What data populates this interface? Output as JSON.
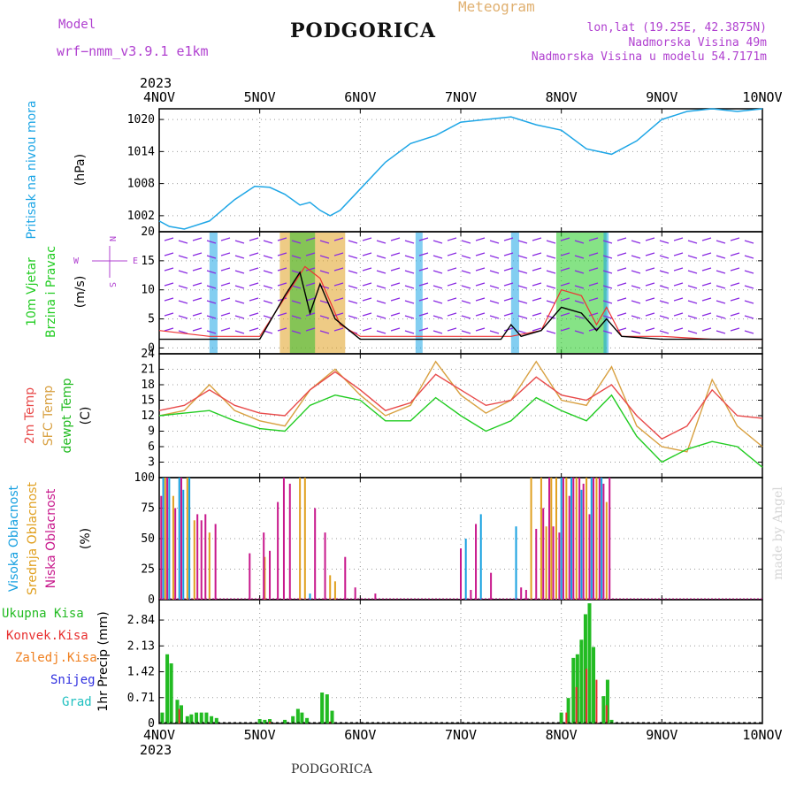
{
  "header": {
    "model_label": "Model",
    "model_name": "wrf−nmm_v3.9.1 e1km",
    "title": "PODGORICA",
    "meteogram": "Meteogram",
    "lonlat": "lon,lat (19.25E, 42.3875N)",
    "elevation": "Nadmorska Visina 49m",
    "model_elevation": "Nadmorska Visina u modelu 54.7171m"
  },
  "footer": {
    "location": "PODGORICA"
  },
  "watermark": "made by Angel",
  "colors": {
    "pressure": "#1ea6e6",
    "t2m": "#e84a4a",
    "sfc": "#d8a040",
    "dewpt": "#22cc22",
    "high_cloud": "#16a0e0",
    "mid_cloud": "#e0a020",
    "low_cloud": "#c8188c",
    "total_precip": "#22bb22",
    "conv_precip": "#e83030",
    "frozen_precip": "#f08020",
    "snow": "#3030e0",
    "hail": "#20c0c0",
    "wind_speed": "#000000",
    "gust": "#ee3333",
    "header_purple": "#b040d0",
    "meteogram_orange": "#e0b070"
  },
  "chart_data": [
    {
      "type": "line",
      "panel": "pressure",
      "x_ticks": [
        "4NOV",
        "5NOV",
        "6NOV",
        "7NOV",
        "8NOV",
        "9NOV",
        "10NOV"
      ],
      "x_year": "2023",
      "xlim": [
        0,
        6
      ],
      "ylabel": [
        "Pritisak na nivou mora",
        "(hPa)"
      ],
      "yticks": [
        1002,
        1008,
        1014,
        1020
      ],
      "ylim": [
        999,
        1022
      ],
      "grid": true,
      "series": [
        {
          "name": "Pritisak na nivou mora",
          "x": [
            0,
            0.1,
            0.25,
            0.5,
            0.75,
            0.95,
            1.1,
            1.25,
            1.4,
            1.5,
            1.6,
            1.7,
            1.8,
            2,
            2.25,
            2.5,
            2.75,
            3,
            3.25,
            3.5,
            3.75,
            4,
            4.25,
            4.5,
            4.75,
            5,
            5.25,
            5.5,
            5.75,
            6
          ],
          "y": [
            1001,
            1000,
            999.5,
            1001,
            1005,
            1007.5,
            1007.3,
            1006,
            1004,
            1004.5,
            1003,
            1002,
            1003,
            1007,
            1012,
            1015.5,
            1017,
            1019.5,
            1020,
            1020.5,
            1019,
            1018,
            1014.5,
            1013.5,
            1016,
            1020,
            1021.5,
            1022,
            1021.5,
            1022
          ]
        }
      ]
    },
    {
      "type": "line",
      "panel": "wind",
      "xlim": [
        0,
        6
      ],
      "ylabel": [
        "10m Vjetar",
        "Brzina i Pravac",
        "(m/s)"
      ],
      "yticks": [
        0,
        5,
        10,
        15,
        20
      ],
      "ylim": [
        -1,
        20
      ],
      "direction_legend": [
        "N",
        "W",
        "E",
        "S"
      ],
      "grid": true,
      "series": [
        {
          "name": "10m Vjetar",
          "x": [
            0,
            0.5,
            1,
            1.25,
            1.4,
            1.5,
            1.6,
            1.75,
            2,
            2.5,
            3,
            3.4,
            3.5,
            3.6,
            3.8,
            4,
            4.2,
            4.35,
            4.45,
            4.6,
            5,
            5.5,
            6
          ],
          "y": [
            1.5,
            1.5,
            1.5,
            9,
            13,
            6,
            11,
            5,
            1.5,
            1.5,
            1.5,
            1.5,
            4,
            2,
            3,
            7,
            6,
            3,
            5,
            2,
            1.5,
            1.5,
            1.5
          ]
        },
        {
          "name": "gust",
          "x": [
            0,
            0.5,
            1,
            1.3,
            1.45,
            1.6,
            1.8,
            2,
            2.5,
            3,
            3.5,
            3.8,
            4,
            4.2,
            4.35,
            4.45,
            4.6,
            5,
            5.5,
            6
          ],
          "y": [
            3,
            2,
            2,
            10,
            14,
            12,
            4,
            2,
            2,
            2,
            2,
            3,
            10,
            9,
            4,
            7,
            2,
            2,
            1.5,
            1.5
          ]
        }
      ]
    },
    {
      "type": "line",
      "panel": "temperature",
      "xlim": [
        0,
        6
      ],
      "ylabel": [
        "2m Temp",
        "SFC Temp",
        "dewpt Temp",
        "(C)"
      ],
      "yticks": [
        3,
        6,
        9,
        12,
        15,
        18,
        21,
        24
      ],
      "ylim": [
        0,
        24
      ],
      "grid": true,
      "series": [
        {
          "name": "2m Temp",
          "x": [
            0,
            0.25,
            0.5,
            0.75,
            1,
            1.25,
            1.5,
            1.75,
            2,
            2.25,
            2.5,
            2.75,
            3,
            3.25,
            3.5,
            3.75,
            4,
            4.25,
            4.5,
            4.75,
            5,
            5.25,
            5.5,
            5.75,
            6
          ],
          "y": [
            13,
            14,
            17,
            14,
            12.5,
            12,
            17,
            20.5,
            17,
            13,
            14.5,
            20,
            17,
            14,
            15,
            19.5,
            16,
            15,
            18,
            12,
            7.5,
            10,
            17,
            12,
            11.5
          ]
        },
        {
          "name": "SFC Temp",
          "x": [
            0,
            0.25,
            0.5,
            0.75,
            1,
            1.25,
            1.5,
            1.75,
            2,
            2.25,
            2.5,
            2.75,
            3,
            3.25,
            3.5,
            3.75,
            4,
            4.25,
            4.5,
            4.75,
            5,
            5.25,
            5.5,
            5.75,
            6
          ],
          "y": [
            12,
            13,
            18,
            13,
            11,
            10,
            17,
            21,
            16,
            12,
            14,
            22.5,
            16,
            12.5,
            15,
            22.5,
            15,
            14,
            21.5,
            10,
            6,
            5,
            19,
            10,
            6
          ]
        },
        {
          "name": "dewpt Temp",
          "x": [
            0,
            0.25,
            0.5,
            0.75,
            1,
            1.25,
            1.5,
            1.75,
            2,
            2.25,
            2.5,
            2.75,
            3,
            3.25,
            3.5,
            3.75,
            4,
            4.25,
            4.5,
            4.75,
            5,
            5.25,
            5.5,
            5.75,
            6
          ],
          "y": [
            12,
            12.5,
            13,
            11,
            9.5,
            9,
            14,
            16,
            15,
            11,
            11,
            15.5,
            12,
            9,
            11,
            15.5,
            13,
            11,
            16,
            8,
            3,
            5.5,
            7,
            6,
            2
          ]
        }
      ]
    },
    {
      "type": "bar",
      "panel": "clouds",
      "xlim": [
        0,
        6
      ],
      "ylabel": [
        "Visoka Oblacnost",
        "Srednja Oblacnost",
        "Niska Oblacnost",
        "(%)"
      ],
      "yticks": [
        0,
        25,
        50,
        75,
        100
      ],
      "ylim": [
        0,
        100
      ],
      "grid": true,
      "series": [
        {
          "name": "Visoka Oblacnost",
          "x": [
            0.04,
            0.1,
            0.2,
            0.24,
            0.3,
            1.5,
            3.05,
            3.2,
            3.55,
            4,
            4.1,
            4.2,
            4.3,
            4.4
          ],
          "y": [
            100,
            100,
            100,
            90,
            100,
            5,
            50,
            70,
            60,
            100,
            100,
            90,
            100,
            100
          ]
        },
        {
          "name": "Srednja Oblacnost",
          "x": [
            0.06,
            0.14,
            0.28,
            0.35,
            0.5,
            1.05,
            1.4,
            1.45,
            1.7,
            1.75,
            3.7,
            3.8,
            3.85,
            3.9,
            3.95,
            4.05,
            4.15,
            4.25,
            4.35,
            4.45
          ],
          "y": [
            100,
            85,
            100,
            65,
            55,
            35,
            100,
            100,
            20,
            15,
            100,
            100,
            60,
            100,
            100,
            100,
            100,
            100,
            100,
            80
          ]
        },
        {
          "name": "Niska Oblacnost",
          "x": [
            0.02,
            0.08,
            0.16,
            0.22,
            0.38,
            0.42,
            0.46,
            0.56,
            0.9,
            1.04,
            1.1,
            1.18,
            1.24,
            1.3,
            1.55,
            1.65,
            1.85,
            1.95,
            2.15,
            3,
            3.1,
            3.15,
            3.3,
            3.6,
            3.65,
            3.75,
            3.82,
            3.88,
            3.92,
            3.98,
            4.02,
            4.08,
            4.12,
            4.18,
            4.22,
            4.28,
            4.32,
            4.38,
            4.42,
            4.48
          ],
          "y": [
            85,
            100,
            75,
            100,
            70,
            65,
            70,
            62,
            38,
            55,
            40,
            80,
            100,
            95,
            75,
            55,
            35,
            10,
            5,
            42,
            8,
            62,
            22,
            10,
            8,
            58,
            75,
            100,
            60,
            55,
            100,
            85,
            100,
            100,
            95,
            70,
            100,
            100,
            95,
            100
          ]
        }
      ]
    },
    {
      "type": "bar",
      "panel": "precip",
      "xlim": [
        0,
        6
      ],
      "ylabel": [
        "1hr Precip",
        "(mm)"
      ],
      "yticks": [
        0,
        0.71,
        1.42,
        2.13,
        2.84
      ],
      "ylim": [
        0,
        3.4
      ],
      "grid": true,
      "legend": [
        "Ukupna Kisa",
        "Konvek.Kisa",
        "Zaledj.Kisa",
        "Snijeg",
        "Grad"
      ],
      "series": [
        {
          "name": "Ukupna Kisa",
          "x": [
            0.03,
            0.08,
            0.12,
            0.18,
            0.22,
            0.28,
            0.32,
            0.37,
            0.42,
            0.47,
            0.52,
            0.57,
            1,
            1.05,
            1.1,
            1.25,
            1.33,
            1.38,
            1.42,
            1.47,
            1.62,
            1.67,
            1.72,
            4.0,
            4.07,
            4.12,
            4.16,
            4.2,
            4.24,
            4.28,
            4.32,
            4.42,
            4.46,
            4.5
          ],
          "y": [
            0.3,
            1.9,
            1.65,
            0.65,
            0.5,
            0.2,
            0.25,
            0.3,
            0.3,
            0.3,
            0.2,
            0.15,
            0.12,
            0.1,
            0.12,
            0.1,
            0.2,
            0.4,
            0.3,
            0.15,
            0.85,
            0.8,
            0.35,
            0.3,
            0.7,
            1.8,
            1.9,
            2.3,
            3.0,
            3.3,
            2.1,
            0.75,
            1.2,
            0.1
          ]
        },
        {
          "name": "Konvek.Kisa",
          "x": [
            0.2,
            1.1,
            1.7,
            4.05,
            4.15,
            4.25,
            4.35,
            4.45
          ],
          "y": [
            0.4,
            0.05,
            0.05,
            0.3,
            1.0,
            1.5,
            1.2,
            0.5
          ]
        }
      ]
    }
  ]
}
